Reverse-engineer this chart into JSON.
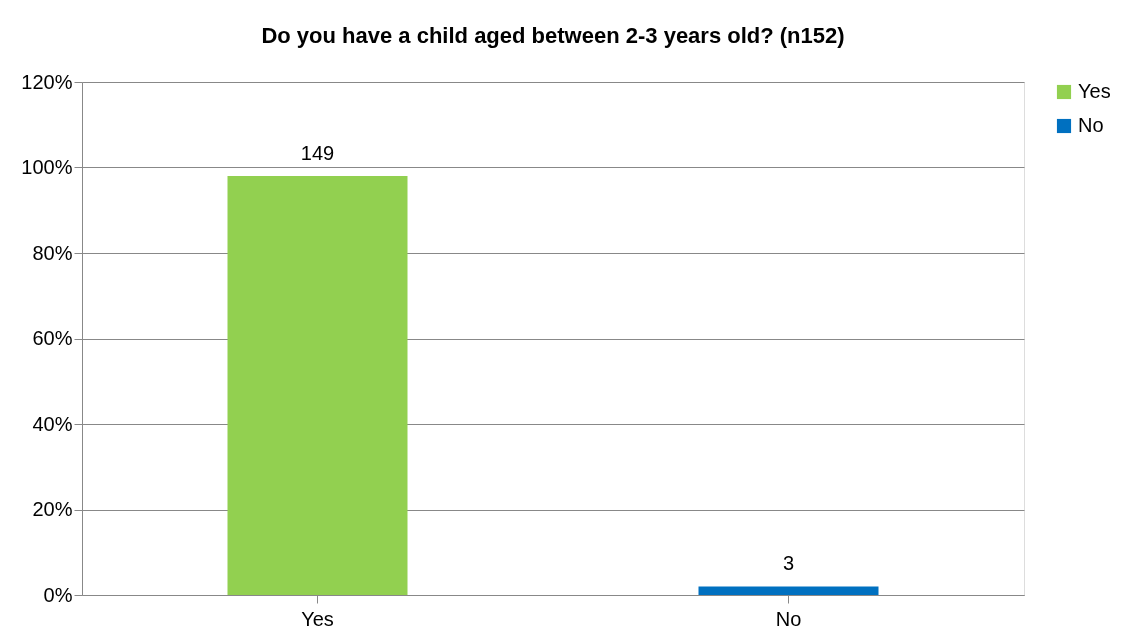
{
  "chart_data": {
    "type": "bar",
    "title": "Do you have a child aged between 2-3 years old? (n152)",
    "categories": [
      "Yes",
      "No"
    ],
    "series": [
      {
        "name": "Yes",
        "color": "#92d050",
        "values": [
          98.0,
          null
        ]
      },
      {
        "name": "No",
        "color": "#0070c0",
        "values": [
          null,
          2.0
        ]
      }
    ],
    "annotations": [
      {
        "text": "149",
        "x": "Yes",
        "y": 98.0
      },
      {
        "text": "3",
        "x": "No",
        "y": 2.0
      }
    ],
    "ylim": [
      0,
      120
    ],
    "yticks": [
      {
        "value": 0,
        "label": "0%"
      },
      {
        "value": 20,
        "label": "20%"
      },
      {
        "value": 40,
        "label": "40%"
      },
      {
        "value": 60,
        "label": "60%"
      },
      {
        "value": 80,
        "label": "80%"
      },
      {
        "value": 100,
        "label": "100%"
      },
      {
        "value": 120,
        "label": "120%"
      }
    ],
    "grid": "y",
    "legend": "right"
  }
}
